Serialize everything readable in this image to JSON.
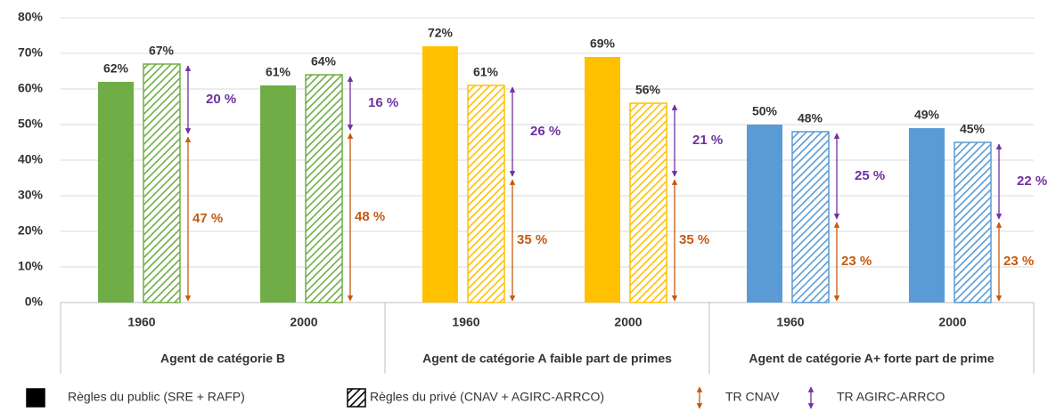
{
  "chart_data": {
    "type": "bar",
    "groups": [
      {
        "label": "Agent de catégorie B",
        "color": "#70ad47",
        "categories": [
          "1960",
          "2000"
        ]
      },
      {
        "label": "Agent de catégorie A faible part de primes",
        "color": "#ffc000",
        "categories": [
          "1960",
          "2000"
        ]
      },
      {
        "label": "Agent de catégorie A+ forte part de prime",
        "color": "#5b9bd5",
        "categories": [
          "1960",
          "2000"
        ]
      }
    ],
    "series": [
      {
        "name": "Règles du public (SRE + RAFP)",
        "color": "#000000",
        "pattern": "solid",
        "values": [
          62,
          61,
          72,
          69,
          50,
          49
        ],
        "value_labels": [
          "62%",
          "61%",
          "72%",
          "69%",
          "50%",
          "49%"
        ]
      },
      {
        "name": "Règles du privé (CNAV + AGIRC-ARRCO)",
        "color": "#000000",
        "pattern": "hatch",
        "values": [
          67,
          64,
          61,
          56,
          48,
          45
        ],
        "value_labels": [
          "67%",
          "64%",
          "61%",
          "56%",
          "48%",
          "45%"
        ]
      },
      {
        "name": "TR CNAV",
        "color": "#c55a11",
        "type": "arrow",
        "values": [
          47,
          48,
          35,
          35,
          23,
          23
        ],
        "value_labels": [
          "47 %",
          "48 %",
          "35 %",
          "35 %",
          "23 %",
          "23 %"
        ]
      },
      {
        "name": "TR AGIRC-ARRCO",
        "color": "#7030a0",
        "type": "arrow",
        "stacked_on": "TR CNAV",
        "values": [
          20,
          16,
          26,
          21,
          25,
          22
        ],
        "value_labels": [
          "20 %",
          "16 %",
          "26 %",
          "21 %",
          "25 %",
          "22 %"
        ]
      }
    ],
    "ylim": [
      0,
      80
    ],
    "yticks": [
      {
        "value": 0,
        "label": "0%"
      },
      {
        "value": 10,
        "label": "10%"
      },
      {
        "value": 20,
        "label": "20%"
      },
      {
        "value": 30,
        "label": "30%"
      },
      {
        "value": 40,
        "label": "40%"
      },
      {
        "value": 50,
        "label": "50%"
      },
      {
        "value": 60,
        "label": "60%"
      },
      {
        "value": 70,
        "label": "70%"
      },
      {
        "value": 80,
        "label": "80%"
      }
    ],
    "grid": true
  }
}
